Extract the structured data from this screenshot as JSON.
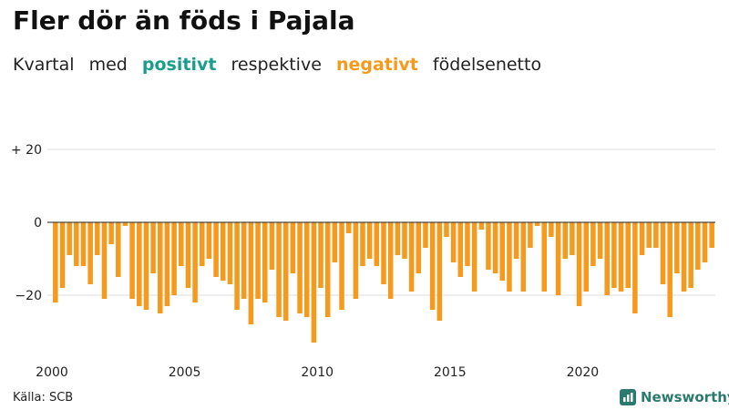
{
  "header": {
    "title": "Fler dör än föds i Pajala",
    "subtitle_parts": [
      "Kvartal",
      "med",
      "positivt",
      "respektive",
      "negativt",
      "födelsenetto"
    ]
  },
  "footer": {
    "source": "Källa: SCB",
    "brand": "Newsworthy"
  },
  "colors": {
    "positive": "#1a9e8c",
    "negative": "#f59a1c",
    "grid": "#dddddd",
    "zero_line": "#222222"
  },
  "chart_data": {
    "type": "bar",
    "title": "Fler dör än föds i Pajala",
    "ylim": [
      -36,
      26
    ],
    "y_ticks": [
      20,
      0,
      -20
    ],
    "y_tick_labels": [
      "+ 20",
      "0",
      "−20"
    ],
    "x_tick_labels": [
      "2000",
      "2005",
      "2010",
      "2015",
      "2020"
    ],
    "x_start_year": 2000,
    "x_end_year": 2024,
    "grid": true,
    "legend": "none",
    "series": [
      {
        "values": [
          -22,
          -18,
          -9,
          -12,
          -12,
          -17,
          -9,
          -21,
          -6,
          -15,
          -1,
          -21,
          -23,
          -24,
          -14,
          -25,
          -23,
          -20,
          -12,
          -18,
          -22,
          -12,
          -10,
          -15,
          -16,
          -17,
          -24,
          -21,
          -28,
          -21,
          -22,
          -13,
          -26,
          -27,
          -14,
          -25,
          -26,
          -33,
          -18,
          -26,
          -11,
          -24,
          -3,
          -21,
          -12,
          -10,
          -12,
          -17,
          -21,
          -9,
          -10,
          -19,
          -14,
          -7,
          -24,
          -27,
          -4,
          -11,
          -15,
          -12,
          -19,
          -2,
          -13,
          -14,
          -16,
          -19,
          -10,
          -19,
          -7,
          -1,
          -19,
          -4,
          -20,
          -10,
          -9,
          -23,
          -19,
          -12,
          -10,
          -20,
          -18,
          -19,
          -18,
          -25,
          -9,
          -7,
          -7,
          -17,
          -26,
          -14,
          -19,
          -18,
          -13,
          -11,
          -7
        ]
      }
    ]
  }
}
